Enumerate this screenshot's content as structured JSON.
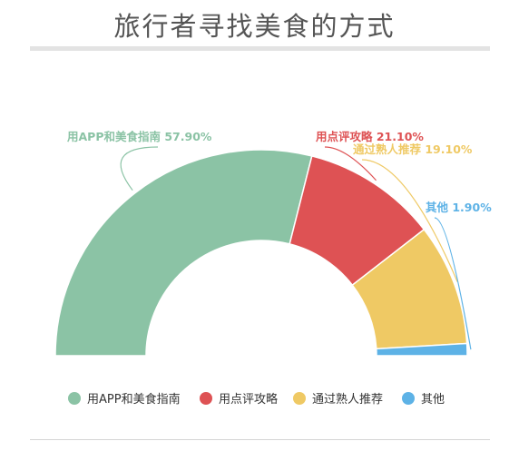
{
  "title": "旅行者寻找美食的方式",
  "chart_data": {
    "type": "pie",
    "variant": "half-donut",
    "title": "旅行者寻找美食的方式",
    "categories": [
      "用APP和美食指南",
      "用点评攻略",
      "通过熟人推荐",
      "其他"
    ],
    "values": [
      57.9,
      21.1,
      19.1,
      1.9
    ],
    "data_labels": [
      "用APP和美食指南 57.90%",
      "用点评攻略 21.10%",
      "通过熟人推荐 19.10%",
      "其他 1.90%"
    ],
    "colors": [
      "#8bc3a5",
      "#de5254",
      "#efc964",
      "#5db2e6"
    ],
    "legend_position": "bottom"
  }
}
